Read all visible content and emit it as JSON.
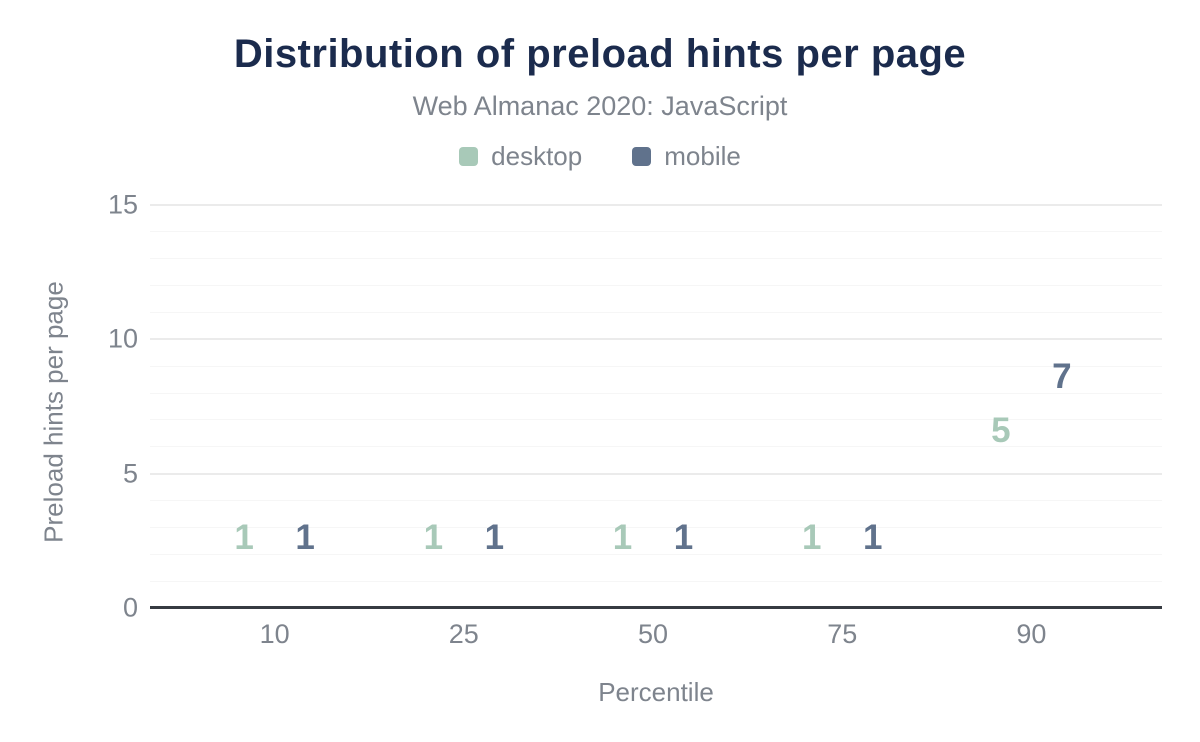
{
  "header": {
    "title": "Distribution of preload hints per page",
    "subtitle": "Web Almanac 2020: JavaScript"
  },
  "chart_data": {
    "type": "bar",
    "title": "Distribution of preload hints per page",
    "subtitle": "Web Almanac 2020: JavaScript",
    "categories": [
      "10",
      "25",
      "50",
      "75",
      "90"
    ],
    "series": [
      {
        "name": "desktop",
        "color": "#a8c9b8",
        "values": [
          1,
          1,
          1,
          1,
          5
        ]
      },
      {
        "name": "mobile",
        "color": "#60728c",
        "values": [
          1,
          1,
          1,
          1,
          7
        ]
      }
    ],
    "xlabel": "Percentile",
    "ylabel": "Preload hints per page",
    "ylim": [
      0,
      15
    ],
    "yticks": [
      0,
      5,
      10,
      15
    ],
    "grid": {
      "minor_step": 1,
      "major_step": 5,
      "orientation": "horizontal"
    },
    "legend_position": "top",
    "bar_value_labels": true
  },
  "colors": {
    "title": "#1b2b4d",
    "muted_text": "#7e848d",
    "axis_line": "#363b41",
    "grid_minor": "#f6f6f6",
    "grid_major": "#ebebeb",
    "background": "#ffffff",
    "desktop": "#a8c9b8",
    "mobile": "#60728c"
  }
}
